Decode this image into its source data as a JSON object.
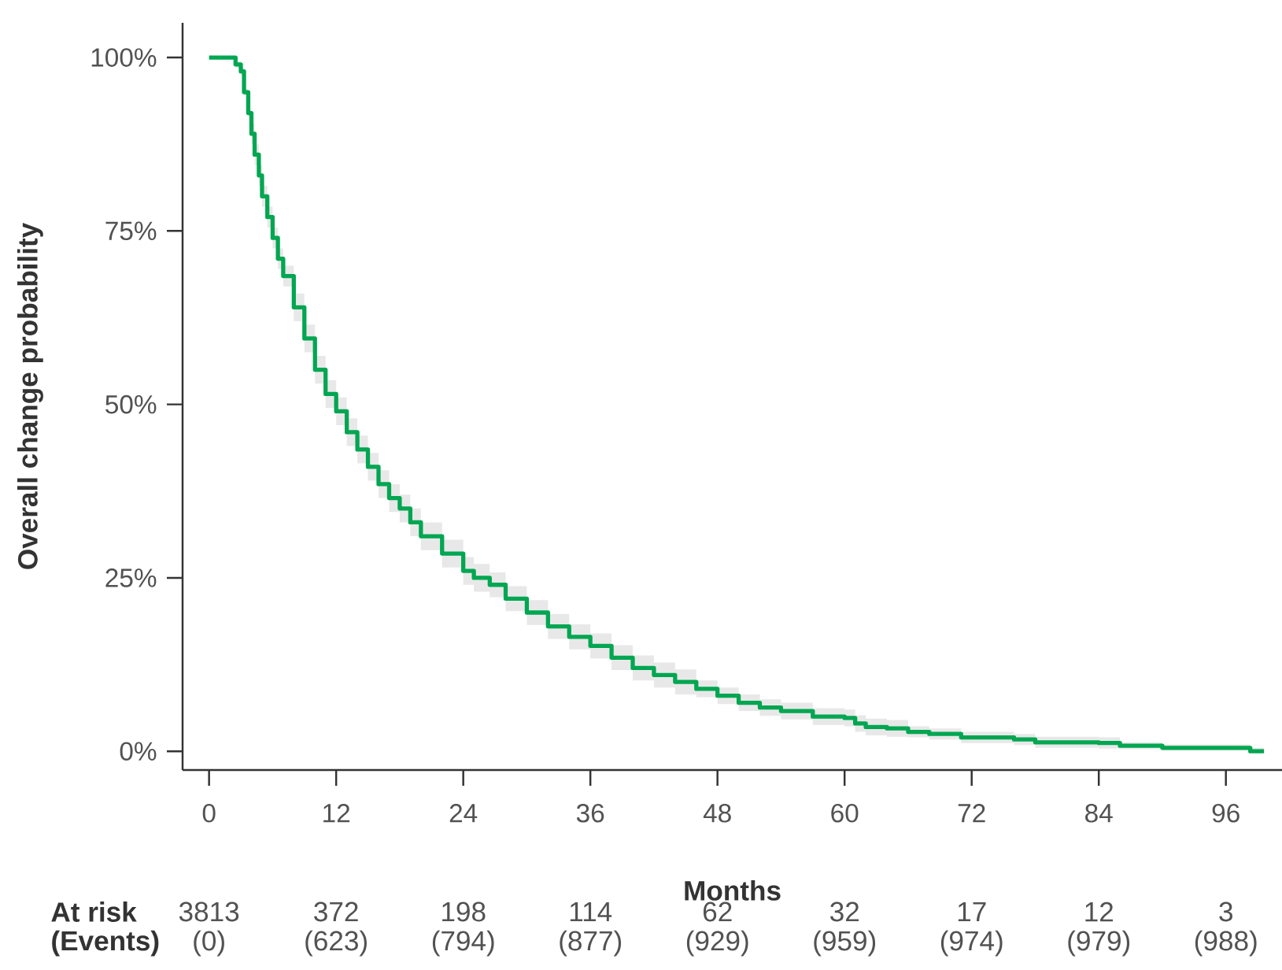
{
  "chart_data": {
    "type": "step",
    "xlabel": "Months",
    "ylabel": "Overall change probability",
    "x": [
      0,
      2,
      2.5,
      3,
      3.3,
      3.7,
      4,
      4.3,
      4.7,
      5,
      5.5,
      6,
      6.5,
      7,
      8,
      9,
      10,
      11,
      12,
      13,
      14,
      15,
      16,
      17,
      18,
      19,
      20,
      22,
      24,
      25,
      26.5,
      28,
      30,
      32,
      34,
      36,
      38,
      40,
      42,
      44,
      46,
      48,
      50,
      52,
      54,
      57,
      60,
      61,
      62,
      64,
      66,
      68,
      71,
      76,
      78,
      84,
      86,
      90,
      98.3,
      99.6
    ],
    "series": [
      {
        "color": "#00a651",
        "values": [
          100,
          100,
          99,
          98,
          95,
          92,
          89,
          86,
          83,
          80,
          77,
          74,
          71,
          68.5,
          64,
          59.5,
          55,
          51.5,
          49,
          46,
          43.5,
          41,
          38.5,
          36.5,
          35,
          33,
          31,
          28.5,
          26,
          25,
          24,
          22,
          20,
          18,
          16.5,
          15.2,
          13.5,
          12,
          11,
          10,
          9,
          8,
          7,
          6.3,
          5.8,
          5,
          4.8,
          4,
          3.5,
          3.3,
          2.8,
          2.5,
          2,
          1.7,
          1.3,
          1.2,
          0.8,
          0.5,
          0,
          0
        ],
        "upper": [
          100,
          100,
          99.5,
          98.5,
          95.5,
          92.5,
          90.5,
          87.5,
          84.5,
          81.5,
          78.5,
          75.5,
          72.5,
          70,
          66,
          61.5,
          57,
          53.5,
          51,
          48,
          45.5,
          43,
          40.5,
          38.5,
          37,
          35,
          33,
          30.5,
          28,
          27,
          25.8,
          23.8,
          21.8,
          19.8,
          18.3,
          17,
          15.3,
          13.8,
          12.8,
          11.8,
          10.2,
          9.2,
          8.2,
          7.5,
          7,
          6.2,
          6,
          5.2,
          4.7,
          4.5,
          3.6,
          3.3,
          2.8,
          2.5,
          2.1,
          2,
          1.3,
          1,
          0.5,
          0.5
        ],
        "lower": [
          100,
          100,
          98.5,
          97.5,
          94.5,
          91.5,
          87.5,
          84.5,
          81.5,
          78.5,
          75.5,
          72.5,
          69.5,
          67,
          62,
          57.5,
          53,
          49.5,
          47,
          44,
          41.5,
          39,
          36.5,
          34.5,
          33,
          31,
          29,
          26.5,
          24,
          23,
          22.2,
          20.2,
          18.2,
          16.2,
          14.7,
          13.4,
          11.7,
          10.2,
          9.2,
          8.2,
          7.8,
          6.8,
          5.8,
          5.1,
          4.6,
          3.8,
          3.6,
          2.8,
          2.3,
          2.1,
          2,
          1.7,
          1.2,
          0.9,
          0.5,
          0.4,
          0.3,
          0.1,
          0,
          0
        ]
      }
    ],
    "xlim": [
      -2.5,
      101.3
    ],
    "ylim": [
      -2.7,
      105
    ],
    "xticks": [
      0,
      12,
      24,
      36,
      48,
      60,
      72,
      84,
      96
    ],
    "yticks": [
      {
        "value": 0,
        "label": "0%"
      },
      {
        "value": 25,
        "label": "25%"
      },
      {
        "value": 50,
        "label": "50%"
      },
      {
        "value": 75,
        "label": "75%"
      },
      {
        "value": 100,
        "label": "100%"
      }
    ],
    "annotations": [
      "At risk",
      "(Events)",
      "3813",
      "(0)",
      "372",
      "(623)",
      "198",
      "(794)",
      "114",
      "(877)",
      "62",
      "(929)",
      "32",
      "(959)",
      "17",
      "(974)",
      "12",
      "(979)",
      "3",
      "(988)"
    ],
    "grid": false
  }
}
